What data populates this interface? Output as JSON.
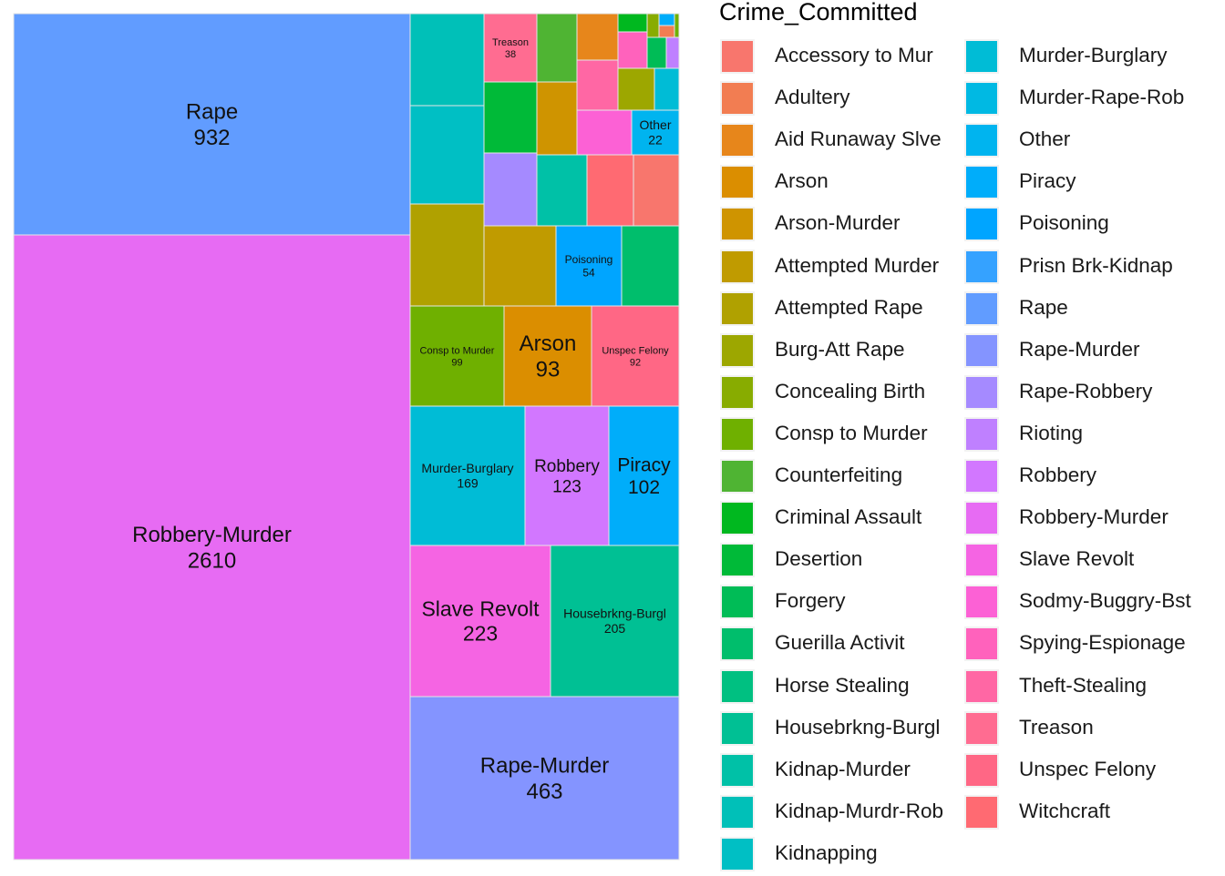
{
  "chart_data": {
    "type": "treemap",
    "legend_title": "Crime_Committed",
    "legend_placement": "right",
    "labelled_tiles": [
      {
        "name": "Robbery-Murder",
        "value": 2610
      },
      {
        "name": "Rape",
        "value": 932
      },
      {
        "name": "Rape-Murder",
        "value": 463
      },
      {
        "name": "Slave Revolt",
        "value": 223
      },
      {
        "name": "Housebrkng-Burgl",
        "value": 205
      },
      {
        "name": "Murder-Burglary",
        "value": 169
      },
      {
        "name": "Robbery",
        "value": 123
      },
      {
        "name": "Piracy",
        "value": 102
      },
      {
        "name": "Consp to Murder",
        "value": 99
      },
      {
        "name": "Arson",
        "value": 93
      },
      {
        "name": "Unspec Felony",
        "value": 92
      },
      {
        "name": "Poisoning",
        "value": 54
      },
      {
        "name": "Treason",
        "value": 38
      },
      {
        "name": "Other",
        "value": 22
      }
    ],
    "categories": [
      {
        "name": "Accessory to Mur",
        "color": "#F8766D"
      },
      {
        "name": "Adultery",
        "color": "#F27D52"
      },
      {
        "name": "Aid Runaway Slve",
        "color": "#E7861B"
      },
      {
        "name": "Arson",
        "color": "#DB8E00"
      },
      {
        "name": "Arson-Murder",
        "color": "#CF9400"
      },
      {
        "name": "Attempted Murder",
        "color": "#C09B00"
      },
      {
        "name": "Attempted Rape",
        "color": "#B0A100"
      },
      {
        "name": "Burg-Att Rape",
        "color": "#9DA700"
      },
      {
        "name": "Concealing Birth",
        "color": "#88AC00"
      },
      {
        "name": "Consp to Murder",
        "color": "#6FB000"
      },
      {
        "name": "Counterfeiting",
        "color": "#4FB433"
      },
      {
        "name": "Criminal Assault",
        "color": "#00B81F"
      },
      {
        "name": "Desertion",
        "color": "#00BA38"
      },
      {
        "name": "Forgery",
        "color": "#00BC56"
      },
      {
        "name": "Guerilla Activit",
        "color": "#00BE6C"
      },
      {
        "name": "Horse Stealing",
        "color": "#00C081"
      },
      {
        "name": "Housebrkng-Burgl",
        "color": "#00C094"
      },
      {
        "name": "Kidnap-Murder",
        "color": "#00C1A7"
      },
      {
        "name": "Kidnap-Murdr-Rob",
        "color": "#00C0B8"
      },
      {
        "name": "Kidnapping",
        "color": "#00BFC4"
      },
      {
        "name": "Murder-Burglary",
        "color": "#00BCD6"
      },
      {
        "name": "Murder-Rape-Rob",
        "color": "#00B9E3"
      },
      {
        "name": "Other",
        "color": "#00B4EF"
      },
      {
        "name": "Piracy",
        "color": "#00ADFA"
      },
      {
        "name": "Poisoning",
        "color": "#00A5FF"
      },
      {
        "name": "Prisn Brk-Kidnap",
        "color": "#35A2FF"
      },
      {
        "name": "Rape",
        "color": "#619CFF"
      },
      {
        "name": "Rape-Murder",
        "color": "#8494FF"
      },
      {
        "name": "Rape-Robbery",
        "color": "#A58AFF"
      },
      {
        "name": "Rioting",
        "color": "#BF80FF"
      },
      {
        "name": "Robbery",
        "color": "#D277FF"
      },
      {
        "name": "Robbery-Murder",
        "color": "#E76BF3"
      },
      {
        "name": "Slave Revolt",
        "color": "#F564E3"
      },
      {
        "name": "Sodmy-Buggry-Bst",
        "color": "#FC61D5"
      },
      {
        "name": "Spying-Espionage",
        "color": "#FF62BC"
      },
      {
        "name": "Theft-Stealing",
        "color": "#FF67A4"
      },
      {
        "name": "Treason",
        "color": "#FF6C91"
      },
      {
        "name": "Unspec Felony",
        "color": "#FF6785"
      },
      {
        "name": "Witchcraft",
        "color": "#FF6A72"
      }
    ]
  }
}
